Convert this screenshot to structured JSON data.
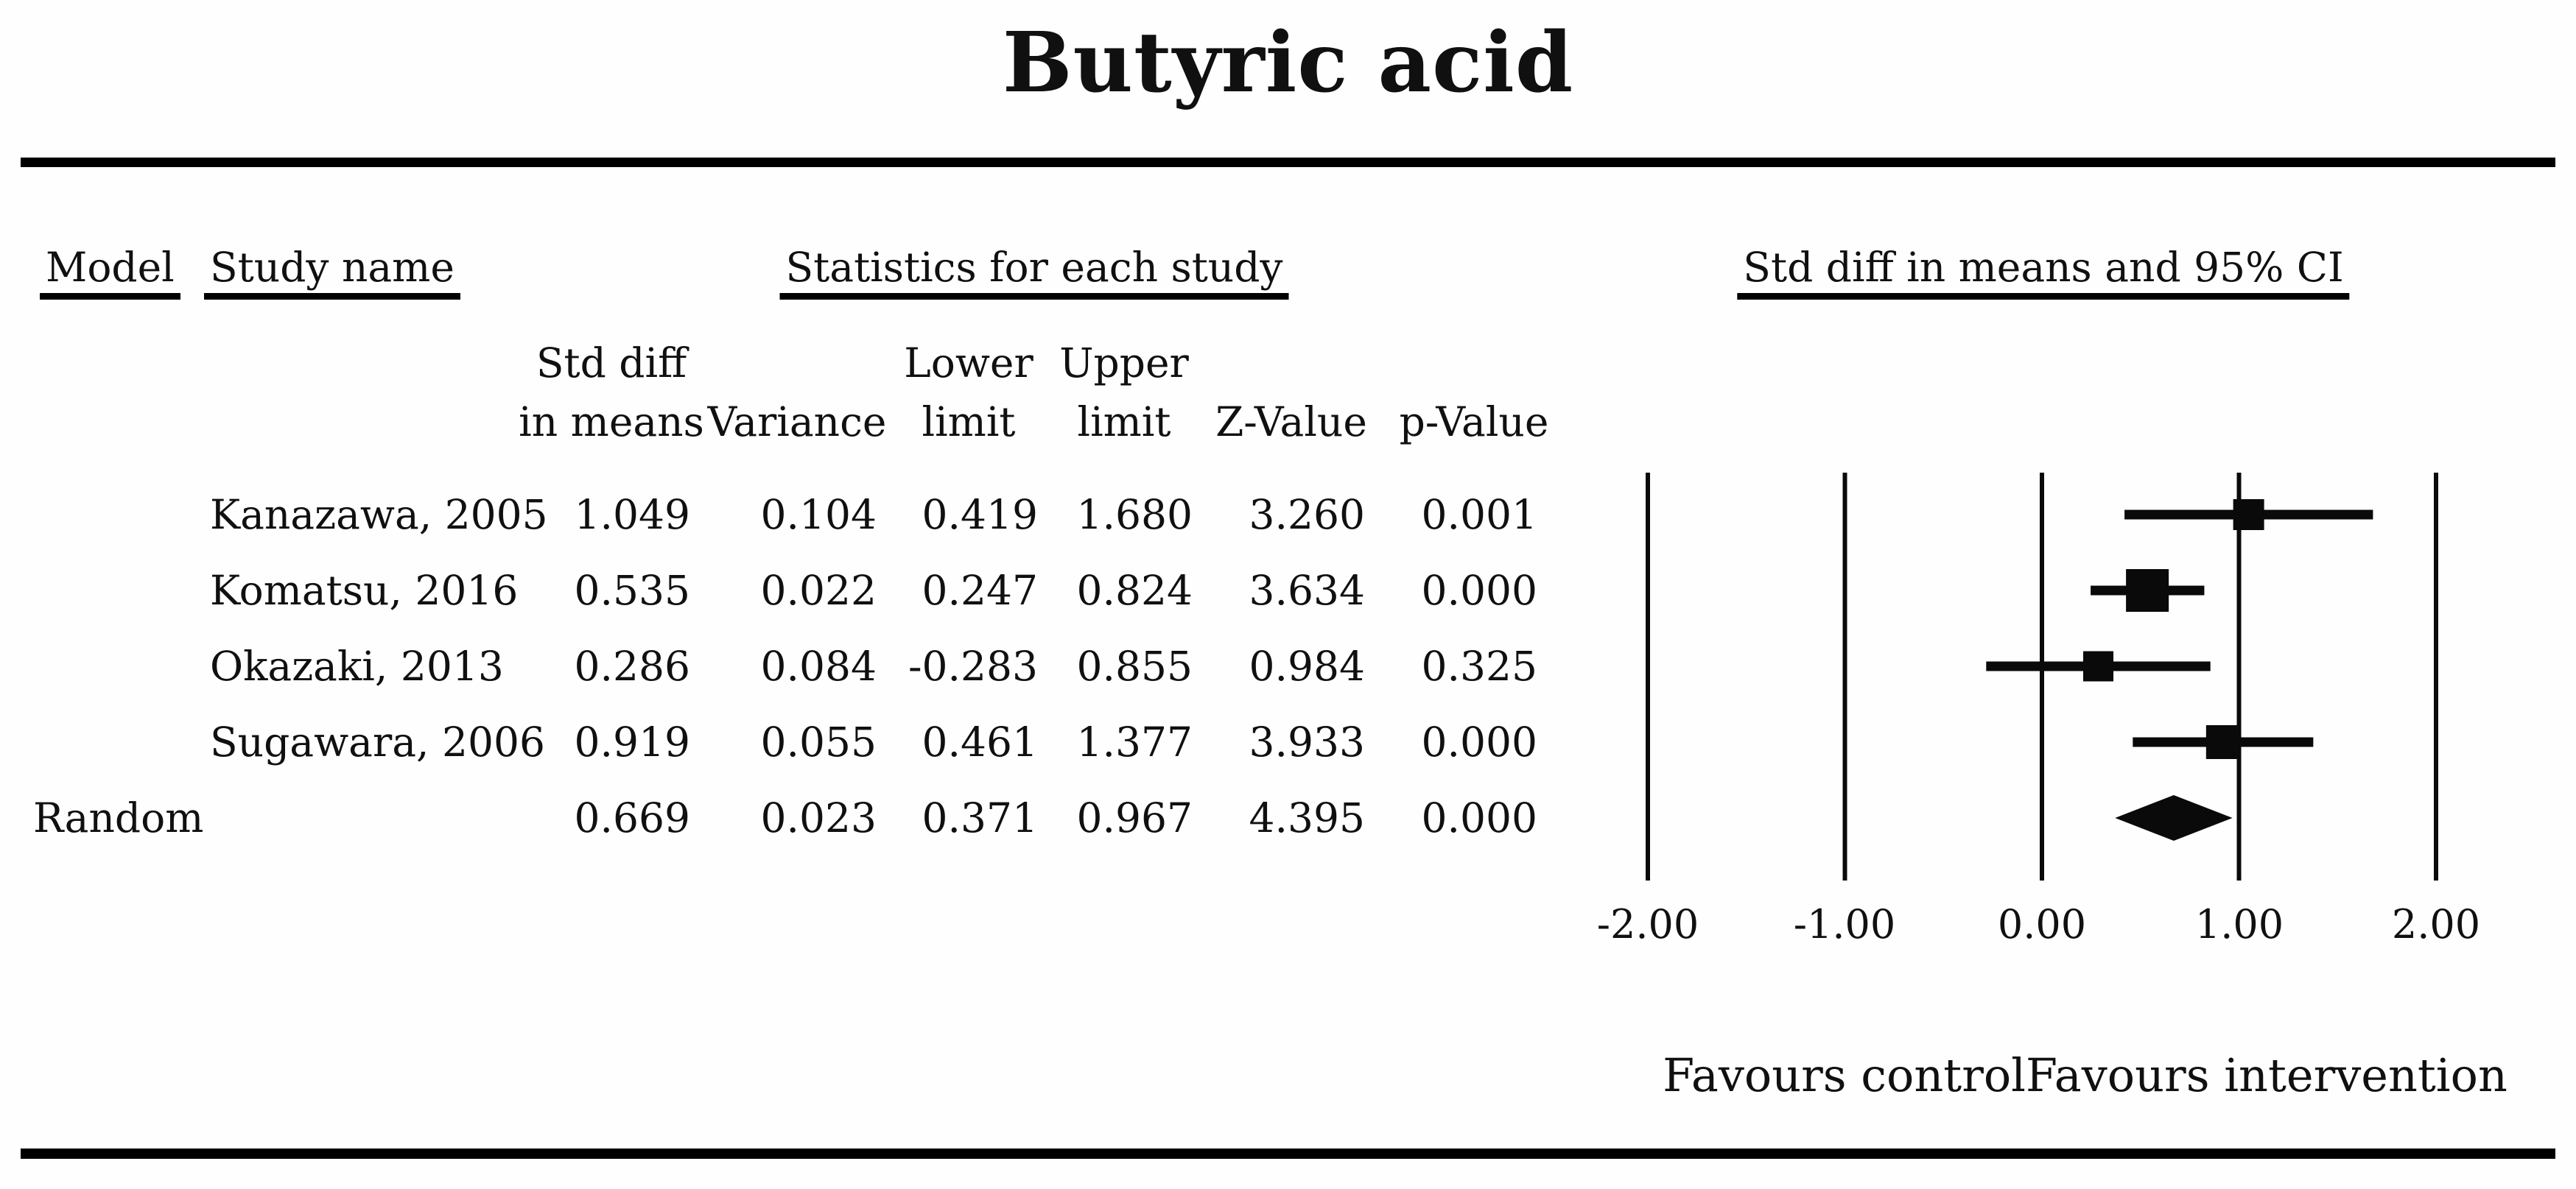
{
  "title": "Butyric acid",
  "headers": {
    "model": "Model",
    "study": "Study name",
    "stats_group": "Statistics for each study",
    "plot_group": "Std diff in means and 95% CI"
  },
  "columns": {
    "sub": [
      {
        "line1": "Std diff",
        "line2": "in means"
      },
      {
        "line1": "",
        "line2": "Variance"
      },
      {
        "line1": "Lower",
        "line2": "limit"
      },
      {
        "line1": "Upper",
        "line2": "limit"
      },
      {
        "line1": "",
        "line2": "Z-Value"
      },
      {
        "line1": "",
        "line2": "p-Value"
      }
    ]
  },
  "table": {
    "rows": [
      {
        "model": "",
        "study": "Kanazawa, 2005",
        "std_diff": "1.049",
        "variance": "0.104",
        "lower": "0.419",
        "upper": "1.680",
        "z": "3.260",
        "p": "0.001"
      },
      {
        "model": "",
        "study": "Komatsu, 2016",
        "std_diff": "0.535",
        "variance": "0.022",
        "lower": "0.247",
        "upper": "0.824",
        "z": "3.634",
        "p": "0.000"
      },
      {
        "model": "",
        "study": "Okazaki, 2013",
        "std_diff": "0.286",
        "variance": "0.084",
        "lower": "-0.283",
        "upper": "0.855",
        "z": "0.984",
        "p": "0.325"
      },
      {
        "model": "",
        "study": "Sugawara, 2006",
        "std_diff": "0.919",
        "variance": "0.055",
        "lower": "0.461",
        "upper": "1.377",
        "z": "3.933",
        "p": "0.000"
      },
      {
        "model": "Random",
        "study": "",
        "std_diff": "0.669",
        "variance": "0.023",
        "lower": "0.371",
        "upper": "0.967",
        "z": "4.395",
        "p": "0.000"
      }
    ]
  },
  "axis": {
    "ticks": [
      "-2.00",
      "-1.00",
      "0.00",
      "1.00",
      "2.00"
    ]
  },
  "footer": {
    "favours_left": "Favours control",
    "favours_right": "Favours intervention"
  },
  "chart_data": {
    "type": "forest",
    "title": "Butyric acid",
    "stats_header": "Statistics for each study",
    "effect_label": "Std diff in means and 95% CI",
    "x_ticks": [
      -2,
      -1,
      0,
      1,
      2
    ],
    "xlim": [
      -2,
      2
    ],
    "grid": "vertical reference lines at each tick",
    "legend_position": "none",
    "studies": [
      {
        "name": "Kanazawa, 2005",
        "std_diff_in_means": 1.049,
        "variance": 0.104,
        "lower_limit": 0.419,
        "upper_limit": 1.68,
        "z_value": 3.26,
        "p_value": 0.001
      },
      {
        "name": "Komatsu, 2016",
        "std_diff_in_means": 0.535,
        "variance": 0.022,
        "lower_limit": 0.247,
        "upper_limit": 0.824,
        "z_value": 3.634,
        "p_value": 0.0
      },
      {
        "name": "Okazaki, 2013",
        "std_diff_in_means": 0.286,
        "variance": 0.084,
        "lower_limit": -0.283,
        "upper_limit": 0.855,
        "z_value": 0.984,
        "p_value": 0.325
      },
      {
        "name": "Sugawara, 2006",
        "std_diff_in_means": 0.919,
        "variance": 0.055,
        "lower_limit": 0.461,
        "upper_limit": 1.377,
        "z_value": 3.933,
        "p_value": 0.0
      }
    ],
    "summary": {
      "model": "Random",
      "std_diff_in_means": 0.669,
      "variance": 0.023,
      "lower_limit": 0.371,
      "upper_limit": 0.967,
      "z_value": 4.395,
      "p_value": 0.0
    },
    "marker_shape": "square",
    "marker_sizes_px": [
      42,
      58,
      41,
      46
    ],
    "summary_marker": "diamond",
    "favours_left": "Favours control",
    "favours_right": "Favours intervention",
    "ink_color": "#0a0a0a"
  }
}
